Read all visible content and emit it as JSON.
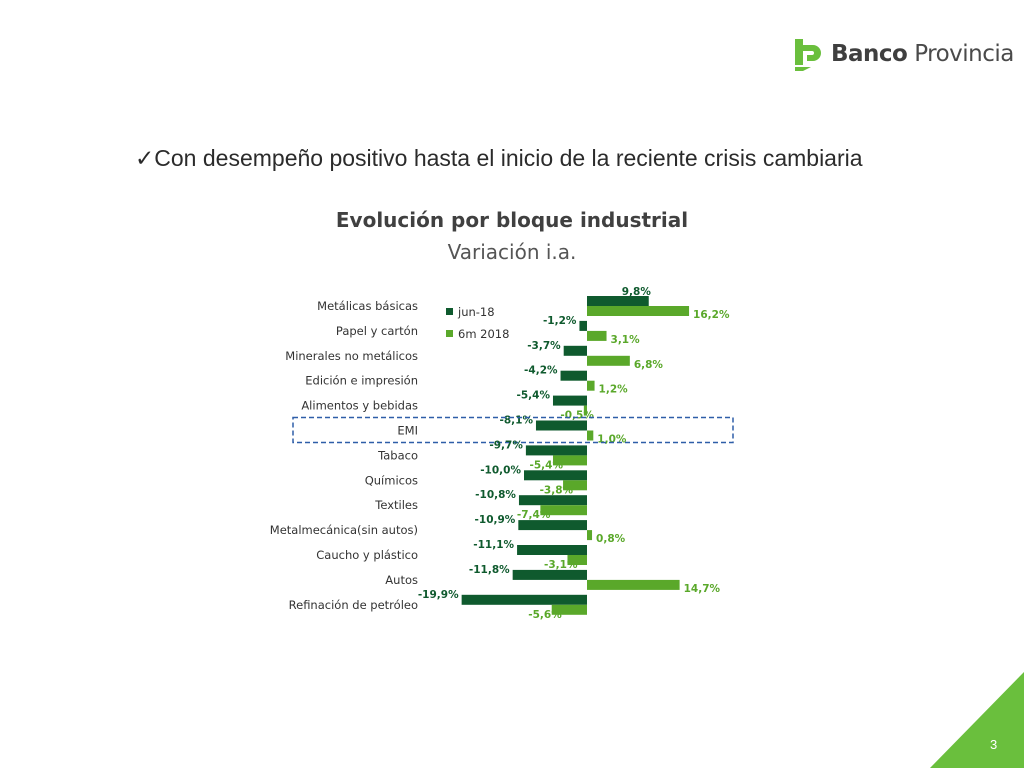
{
  "brand": {
    "name_bold": "Banco",
    "name_regular": "Provincia",
    "green": "#6abf3d",
    "dark_green": "#0f5a2e"
  },
  "headline": {
    "check": "✓",
    "text": "Con desempeño positivo hasta el inicio de la reciente crisis cambiaria"
  },
  "page_number": "3",
  "chart_data": {
    "type": "bar",
    "orientation": "horizontal",
    "title": "Evolución por bloque industrial",
    "subtitle": "Variación i.a.",
    "categories": [
      "Metálicas básicas",
      "Papel y cartón",
      "Minerales no metálicos",
      "Edición e impresión",
      "Alimentos y bebidas",
      "EMI",
      "Tabaco",
      "Químicos",
      "Textiles",
      "Metalmecánica(sin autos)",
      "Caucho y plástico",
      "Autos",
      "Refinación de petróleo"
    ],
    "series": [
      {
        "name": "jun-18",
        "color": "#0f5a2e",
        "values": [
          9.8,
          -1.2,
          -3.7,
          -4.2,
          -5.4,
          -8.1,
          -9.7,
          -10.0,
          -10.8,
          -10.9,
          -11.1,
          -11.8,
          -19.9
        ],
        "labels": [
          "9,8%",
          "-1,2%",
          "-3,7%",
          "-4,2%",
          "-5,4%",
          "-8,1%",
          "-9,7%",
          "-10,0%",
          "-10,8%",
          "-10,9%",
          "-11,1%",
          "-11,8%",
          "-19,9%"
        ]
      },
      {
        "name": "6m 2018",
        "color": "#5aa82a",
        "values": [
          16.2,
          3.1,
          6.8,
          1.2,
          -0.5,
          1.0,
          -5.4,
          -3.8,
          -7.4,
          0.8,
          -3.1,
          14.7,
          -5.6
        ],
        "labels": [
          "16,2%",
          "3,1%",
          "6,8%",
          "1,2%",
          "-0,5%",
          "1,0%",
          "-5,4%",
          "-3,8%",
          "-7,4%",
          "0,8%",
          "-3,1%",
          "14,7%",
          "-5,6%"
        ]
      }
    ],
    "highlight_category": "EMI",
    "legend": "top-left"
  }
}
